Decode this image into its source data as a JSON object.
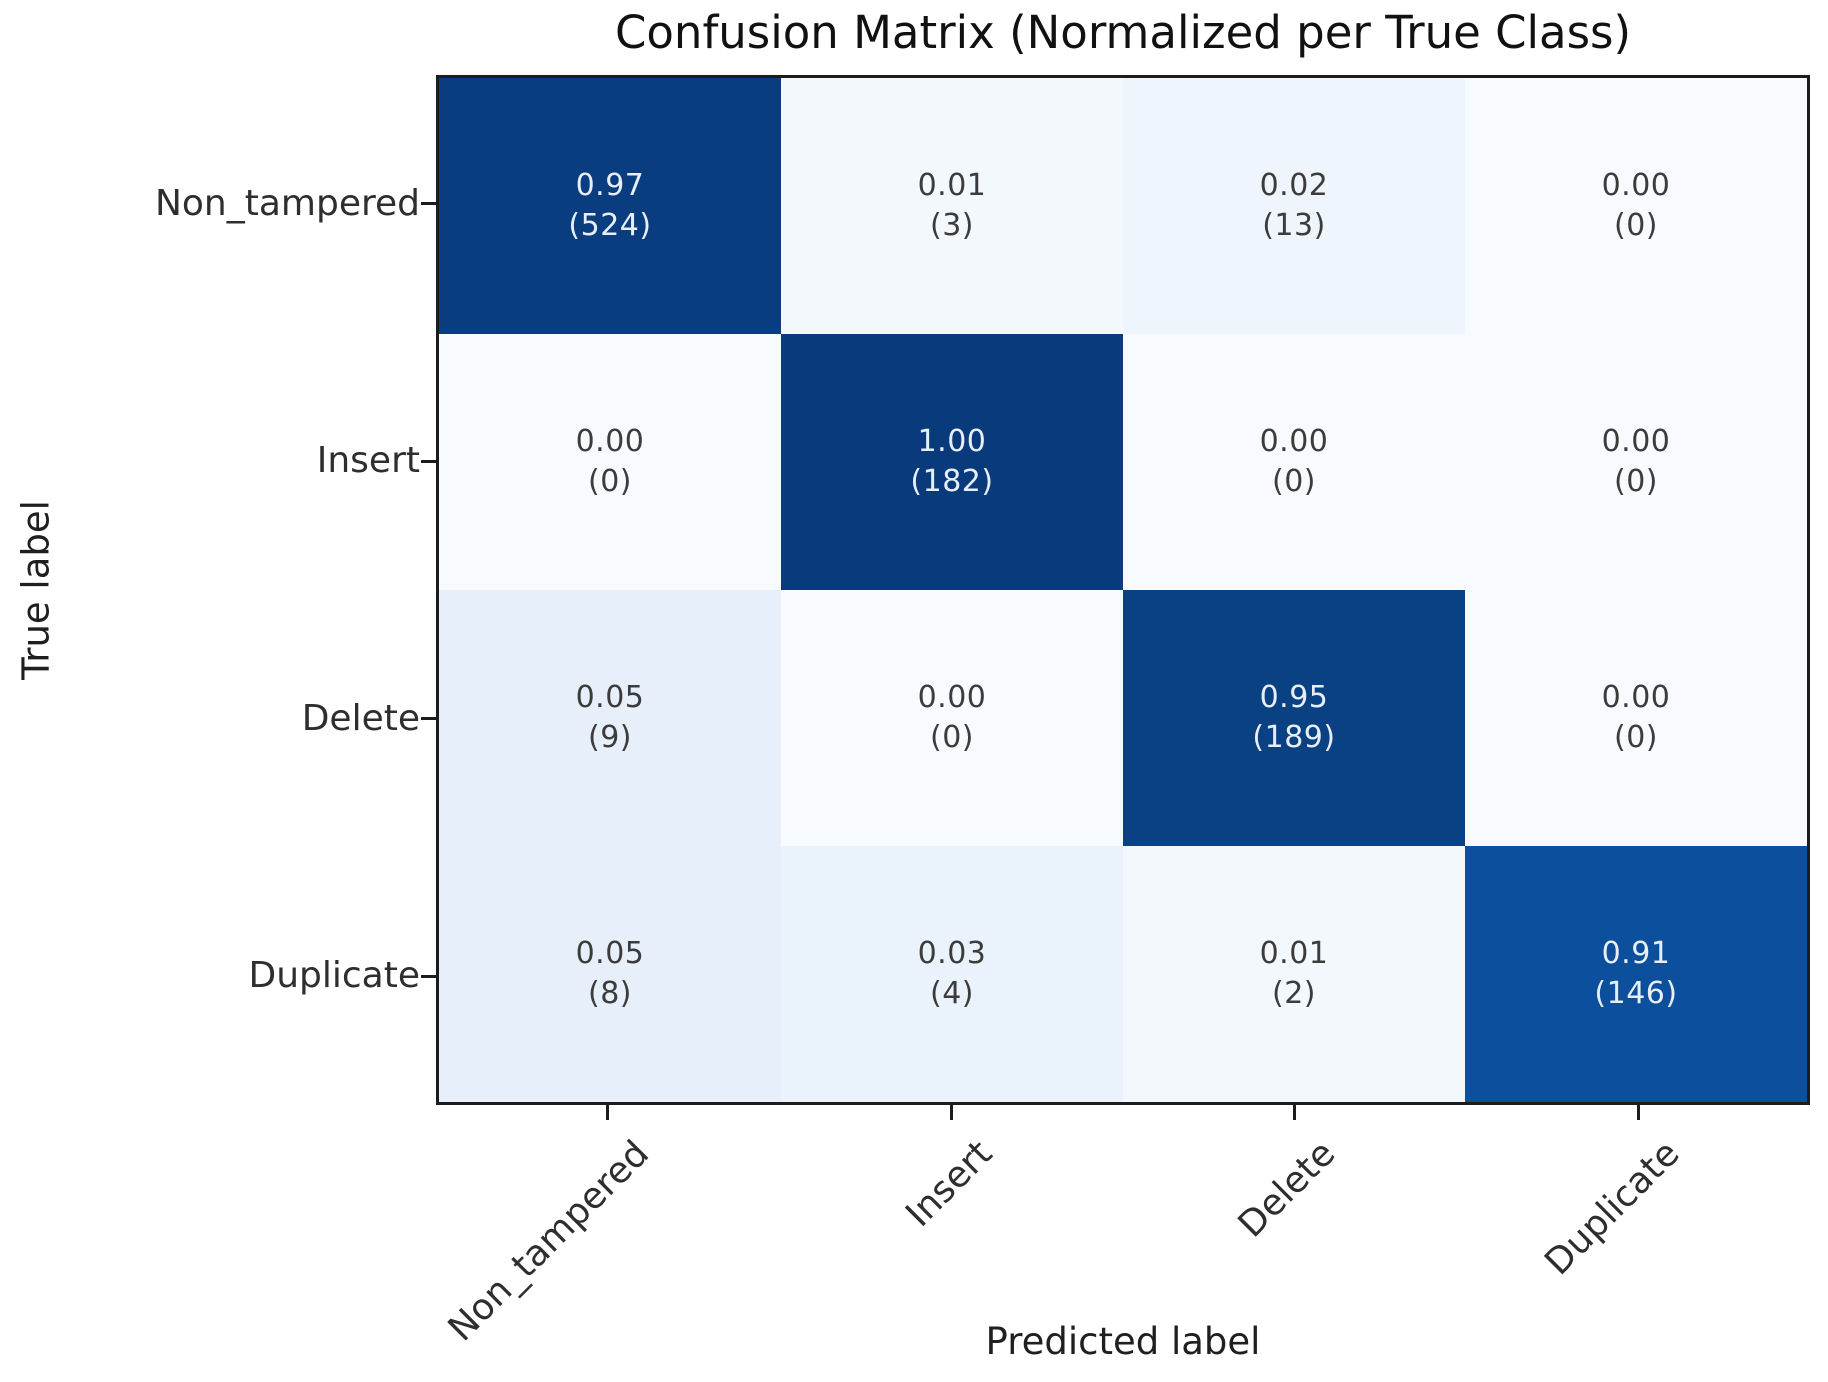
{
  "chart_data": {
    "type": "heatmap",
    "title": "Confusion Matrix (Normalized per True Class)",
    "xlabel": "Predicted label",
    "ylabel": "True label",
    "colormap": "Blues",
    "x_classes": [
      "Non_tampered",
      "Insert",
      "Delete",
      "Duplicate"
    ],
    "y_classes": [
      "Non_tampered",
      "Insert",
      "Delete",
      "Duplicate"
    ],
    "normalized": [
      [
        0.97,
        0.01,
        0.02,
        0.0
      ],
      [
        0.0,
        1.0,
        0.0,
        0.0
      ],
      [
        0.05,
        0.0,
        0.95,
        0.0
      ],
      [
        0.05,
        0.03,
        0.01,
        0.91
      ]
    ],
    "counts": [
      [
        524,
        3,
        13,
        0
      ],
      [
        0,
        182,
        0,
        0
      ],
      [
        9,
        0,
        189,
        0
      ],
      [
        8,
        4,
        2,
        146
      ]
    ],
    "cell_text": [
      [
        {
          "value": "0.97",
          "count": "(524)"
        },
        {
          "value": "0.01",
          "count": "(3)"
        },
        {
          "value": "0.02",
          "count": "(13)"
        },
        {
          "value": "0.00",
          "count": "(0)"
        }
      ],
      [
        {
          "value": "0.00",
          "count": "(0)"
        },
        {
          "value": "1.00",
          "count": "(182)"
        },
        {
          "value": "0.00",
          "count": "(0)"
        },
        {
          "value": "0.00",
          "count": "(0)"
        }
      ],
      [
        {
          "value": "0.05",
          "count": "(9)"
        },
        {
          "value": "0.00",
          "count": "(0)"
        },
        {
          "value": "0.95",
          "count": "(189)"
        },
        {
          "value": "0.00",
          "count": "(0)"
        }
      ],
      [
        {
          "value": "0.05",
          "count": "(8)"
        },
        {
          "value": "0.03",
          "count": "(4)"
        },
        {
          "value": "0.01",
          "count": "(2)"
        },
        {
          "value": "0.91",
          "count": "(146)"
        }
      ]
    ],
    "cell_bg": [
      [
        "#093d7f",
        "#f3f8fd",
        "#eef5fc",
        "#f7fbff"
      ],
      [
        "#f7fbff",
        "#083a7c",
        "#f7fbff",
        "#f7fbff"
      ],
      [
        "#e6effa",
        "#f7fbff",
        "#0a4183",
        "#f7fbff"
      ],
      [
        "#e6effa",
        "#eaf2fb",
        "#f3f8fd",
        "#0c4f9d"
      ]
    ],
    "cell_fg": [
      [
        "#e8eef5",
        "#3c3c3c",
        "#3c3c3c",
        "#3c3c3c"
      ],
      [
        "#3c3c3c",
        "#e8eef5",
        "#3c3c3c",
        "#3c3c3c"
      ],
      [
        "#3c3c3c",
        "#3c3c3c",
        "#e8eef5",
        "#3c3c3c"
      ],
      [
        "#3c3c3c",
        "#3c3c3c",
        "#3c3c3c",
        "#e8eef5"
      ]
    ],
    "spine_color": "#1c1c1c",
    "background_color": "#ffffff",
    "legend": "none",
    "grid": false
  }
}
